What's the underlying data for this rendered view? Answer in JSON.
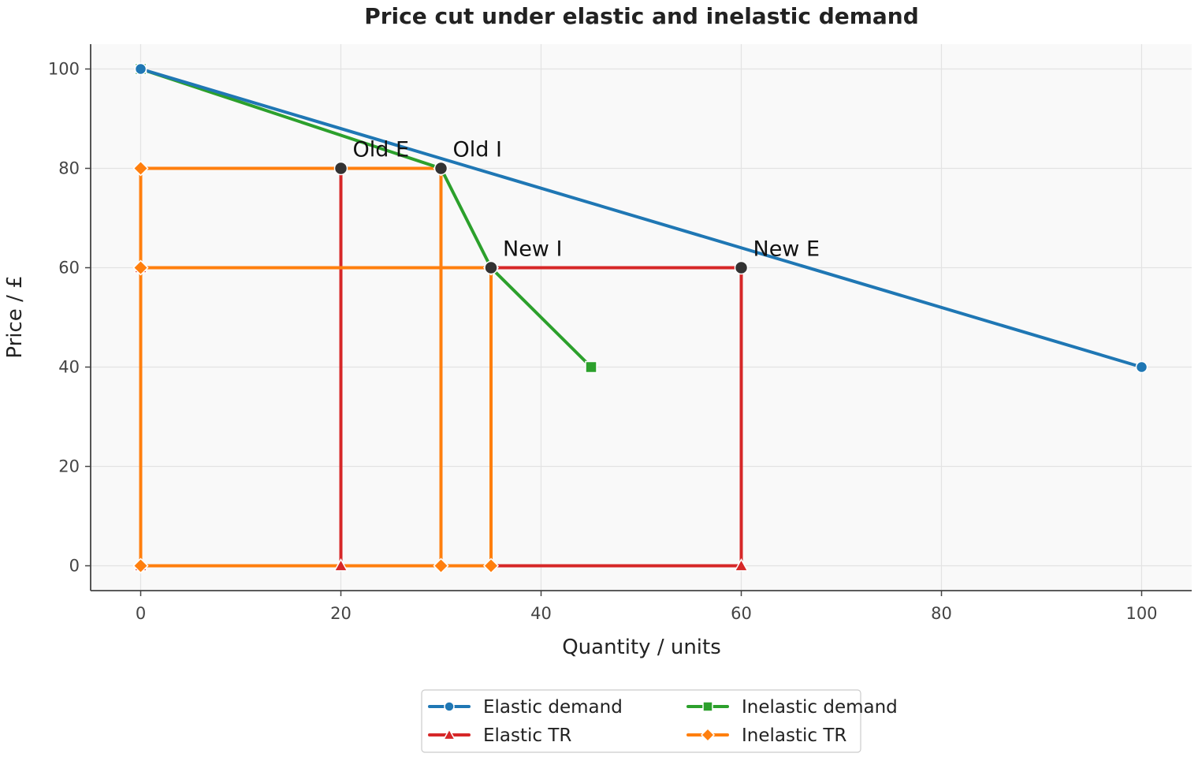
{
  "chart_data": {
    "type": "line",
    "title": "Price cut under elastic and inelastic demand",
    "xlabel": "Quantity / units",
    "ylabel": "Price / £",
    "xlim": [
      -5,
      105
    ],
    "ylim": [
      -5,
      105
    ],
    "xticks": [
      0,
      20,
      40,
      60,
      80,
      100
    ],
    "yticks": [
      0,
      20,
      40,
      60,
      80,
      100
    ],
    "grid": true,
    "legend_position": "bottom-center",
    "series": [
      {
        "name": "Elastic demand",
        "color": "#1f77b4",
        "marker": "circle",
        "points": [
          [
            0,
            100
          ],
          [
            100,
            40
          ]
        ]
      },
      {
        "name": "Inelastic demand",
        "color": "#2ca02c",
        "marker": "square",
        "points": [
          [
            0,
            100
          ],
          [
            30,
            80
          ],
          [
            35,
            60
          ],
          [
            45,
            40
          ]
        ],
        "marker_indices": [
          0,
          3
        ]
      },
      {
        "name": "Elastic TR",
        "color": "#d62728",
        "marker": "triangle",
        "rectangles": [
          [
            [
              20,
              0
            ],
            [
              20,
              80
            ]
          ],
          [
            [
              0,
              60
            ],
            [
              60,
              60
            ],
            [
              60,
              0
            ],
            [
              0,
              0
            ]
          ]
        ]
      },
      {
        "name": "Inelastic TR",
        "color": "#ff7f0e",
        "marker": "diamond",
        "rectangles": [
          [
            [
              0,
              0
            ],
            [
              0,
              80
            ],
            [
              30,
              80
            ],
            [
              30,
              0
            ],
            [
              0,
              0
            ]
          ],
          [
            [
              0,
              0
            ],
            [
              0,
              60
            ],
            [
              35,
              60
            ],
            [
              35,
              0
            ],
            [
              0,
              0
            ]
          ]
        ]
      }
    ],
    "annotations": [
      {
        "label": "Old E",
        "x": 20,
        "y": 80
      },
      {
        "label": "Old I",
        "x": 30,
        "y": 80
      },
      {
        "label": "New I",
        "x": 35,
        "y": 60
      },
      {
        "label": "New E",
        "x": 60,
        "y": 60
      }
    ]
  }
}
